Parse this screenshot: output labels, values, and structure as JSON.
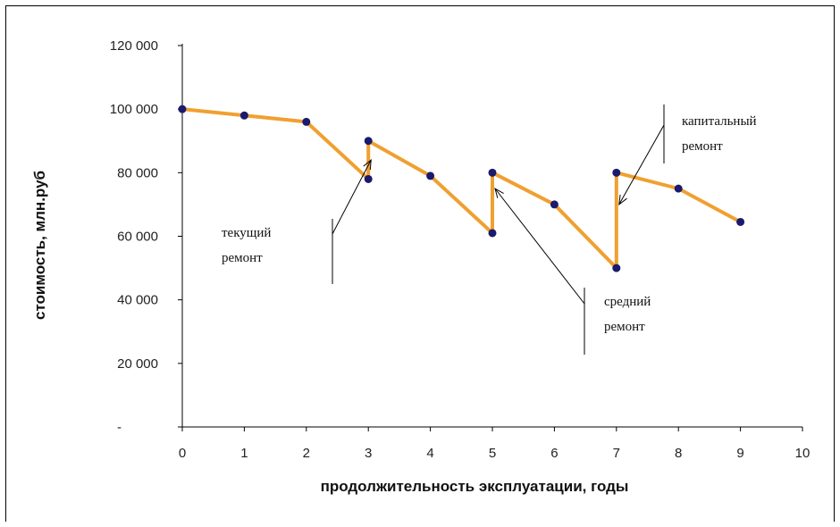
{
  "chart_data": {
    "type": "line",
    "xlabel": "продолжительность эксплуатации, годы",
    "ylabel": "стоимость, млн.руб",
    "xlim": [
      0,
      10
    ],
    "ylim": [
      0,
      120000
    ],
    "x_ticks": [
      "0",
      "1",
      "2",
      "3",
      "4",
      "5",
      "6",
      "7",
      "8",
      "9",
      "10"
    ],
    "y_ticks": [
      "-",
      "20 000",
      "40 000",
      "60 000",
      "80 000",
      "100 000",
      "120 000"
    ],
    "grid": false,
    "series": [
      {
        "color": "#f0a030",
        "marker_color": "#1a1a6e",
        "points": [
          {
            "x": 0,
            "y": 100000
          },
          {
            "x": 1,
            "y": 98000
          },
          {
            "x": 2,
            "y": 96000
          },
          {
            "x": 3,
            "y": 78000
          },
          {
            "x": 3,
            "y": 90000
          },
          {
            "x": 4,
            "y": 79000
          },
          {
            "x": 5,
            "y": 61000
          },
          {
            "x": 5,
            "y": 80000
          },
          {
            "x": 6,
            "y": 70000
          },
          {
            "x": 7,
            "y": 50000
          },
          {
            "x": 7,
            "y": 80000
          },
          {
            "x": 8,
            "y": 75000
          },
          {
            "x": 9,
            "y": 64500
          }
        ]
      }
    ],
    "annotations": [
      {
        "lines": [
          "текущий",
          "ремонт"
        ],
        "points_to": {
          "x": 3,
          "y": 84000
        }
      },
      {
        "lines": [
          "средний",
          "ремонт"
        ],
        "points_to": {
          "x": 5,
          "y": 75000
        }
      },
      {
        "lines": [
          "капитальный",
          "ремонт"
        ],
        "points_to": {
          "x": 7,
          "y": 70000
        }
      }
    ]
  }
}
